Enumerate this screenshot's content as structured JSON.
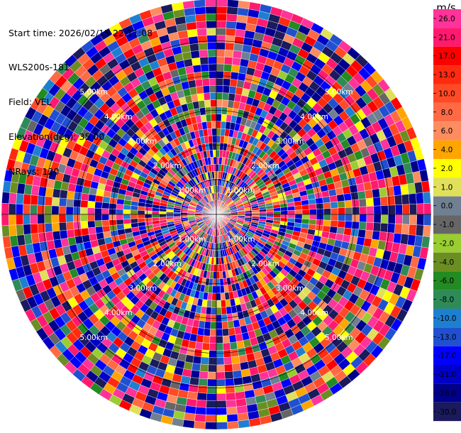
{
  "header": {
    "start_time": "Start time: 2026/02/15 22:11:08",
    "site": "WLS200s-181",
    "field": "Field: VEL",
    "elevation": "Elevation(deg): 35.00",
    "nrays": "NRays: 120"
  },
  "chart_data": {
    "type": "heatmap",
    "projection": "polar",
    "site": "WLS200s-181",
    "field": "VEL",
    "elevation_deg": 35.0,
    "nrays": 120,
    "max_range_km": 6.2,
    "range_ring_labels": [
      "1.00km",
      "2.00km",
      "3.00km",
      "4.00km",
      "5.00km"
    ],
    "range_rings_km": [
      1,
      2,
      3,
      4,
      5
    ],
    "colorbar": {
      "unit": "m/s",
      "ticks": [
        "26.0",
        "21.0",
        "17.0",
        "13.0",
        "10.0",
        "8.0",
        "6.0",
        "4.0",
        "2.0",
        "1.0",
        "0.0",
        "-1.0",
        "-2.0",
        "-4.0",
        "-6.0",
        "-8.0",
        "-10.0",
        "-13.0",
        "-17.0",
        "-21.0",
        "-26.0",
        "-30.0"
      ],
      "bins": [
        {
          "min": 26,
          "max": 30,
          "color": "#ff3399"
        },
        {
          "min": 21,
          "max": 26,
          "color": "#ff1a70"
        },
        {
          "min": 17,
          "max": 21,
          "color": "#ff0000"
        },
        {
          "min": 13,
          "max": 17,
          "color": "#ff2a10"
        },
        {
          "min": 10,
          "max": 13,
          "color": "#ff4a25"
        },
        {
          "min": 8,
          "max": 10,
          "color": "#ff6a45"
        },
        {
          "min": 6,
          "max": 8,
          "color": "#ff8c60"
        },
        {
          "min": 4,
          "max": 6,
          "color": "#ffa500"
        },
        {
          "min": 2,
          "max": 4,
          "color": "#ffff00"
        },
        {
          "min": 1,
          "max": 2,
          "color": "#e0e05a"
        },
        {
          "min": 0,
          "max": 1,
          "color": "#708090"
        },
        {
          "min": -1,
          "max": 0,
          "color": "#666666"
        },
        {
          "min": -2,
          "max": -1,
          "color": "#9acd32"
        },
        {
          "min": -4,
          "max": -2,
          "color": "#6b8e23"
        },
        {
          "min": -6,
          "max": -4,
          "color": "#228b22"
        },
        {
          "min": -8,
          "max": -6,
          "color": "#2e8b57"
        },
        {
          "min": -10,
          "max": -8,
          "color": "#1e7fd0"
        },
        {
          "min": -13,
          "max": -10,
          "color": "#2050d0"
        },
        {
          "min": -17,
          "max": -13,
          "color": "#0000ff"
        },
        {
          "min": -21,
          "max": -17,
          "color": "#0000c8"
        },
        {
          "min": -26,
          "max": -21,
          "color": "#00008b"
        },
        {
          "min": -30,
          "max": -26,
          "color": "#1a1a5c"
        }
      ]
    }
  }
}
